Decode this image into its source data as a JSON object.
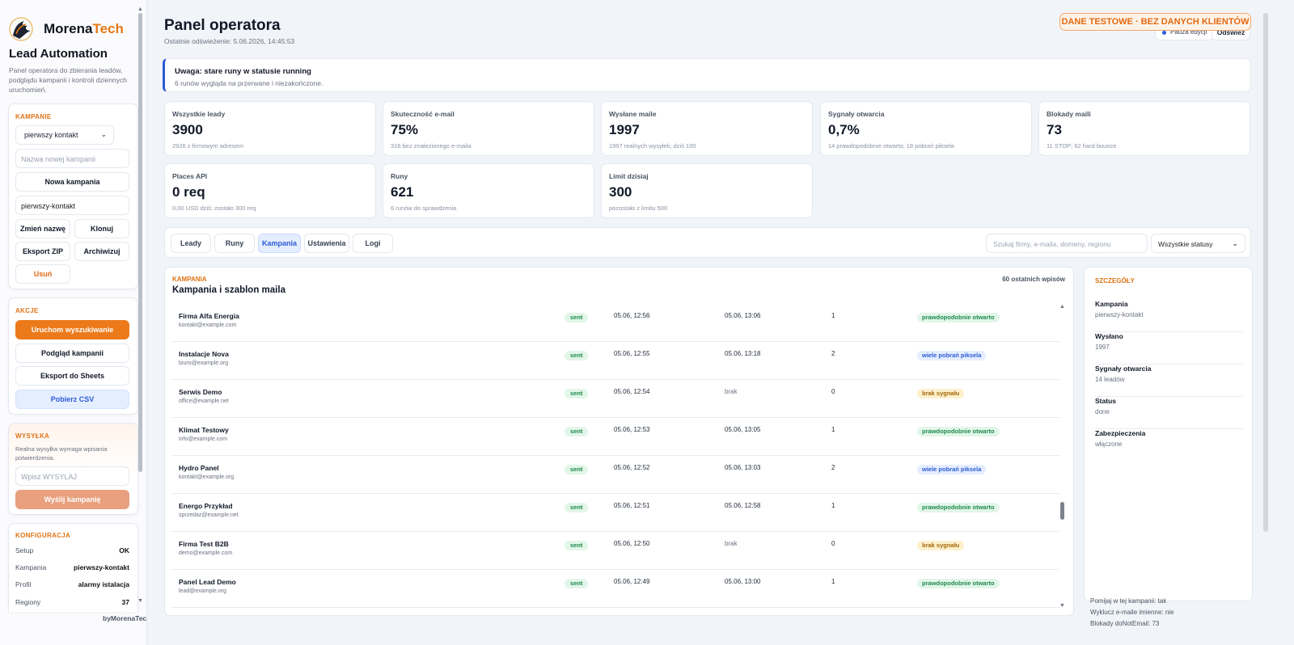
{
  "sidebar": {
    "logo_name": "Morena",
    "logo_accent": "Tech",
    "title": "Lead Automation",
    "description": "Panel operatora do zbierania leadów, podglądu kampanii i kontroli dziennych uruchomień.",
    "campaigns": {
      "heading": "KAMPANIE",
      "select_value": "pierwszy kontakt",
      "new_name_placeholder": "Nazwa nowej kampanii",
      "new_button": "Nowa kampania",
      "slug_value": "pierwszy-kontakt",
      "rename": "Zmień nazwę",
      "clone": "Klonuj",
      "export_zip": "Eksport ZIP",
      "archive": "Archiwizuj",
      "delete": "Usuń"
    },
    "actions": {
      "heading": "AKCJE",
      "run": "Uruchom wyszukiwanie",
      "preview": "Podgląd kampanii",
      "export_sheets": "Eksport do Sheets",
      "download_csv": "Pobierz CSV"
    },
    "sending": {
      "heading": "WYSYŁKA",
      "description": "Realna wysyłka wymaga wpisania potwierdzenia.",
      "confirm_placeholder": "Wpisz WYSYLAJ",
      "send_button": "Wyślij kampanię"
    },
    "config": {
      "heading": "KONFIGURACJA",
      "rows": [
        {
          "k": "Setup",
          "v": "OK"
        },
        {
          "k": "Kampania",
          "v": "pierwszy-kontakt"
        },
        {
          "k": "Profil",
          "v": "alarmy istalacja"
        },
        {
          "k": "Regiony",
          "v": "37"
        }
      ]
    },
    "footer": "byMorenaTech"
  },
  "header": {
    "title": "Panel operatora",
    "subtitle": "Ostatnie odświeżenie: 5.06.2026, 14:45:53",
    "test_badge": "DANE TESTOWE · BEZ DANYCH KLIENTÓW",
    "pause": "Pauza edycji",
    "refresh": "Odśwież"
  },
  "alert": {
    "title": "Uwaga: stare runy w statusie running",
    "text": "6 runów wygląda na przerwane i niezakończone."
  },
  "stats": [
    {
      "label": "Wszystkie leady",
      "value": "3900",
      "sub": "2926 z firmowym adresem"
    },
    {
      "label": "Skuteczność e-mail",
      "value": "75%",
      "sub": "316 bez znalezionego e-maila"
    },
    {
      "label": "Wysłane maile",
      "value": "1997",
      "sub": "1997 realnych wysyłek; dziś 100"
    },
    {
      "label": "Sygnały otwarcia",
      "value": "0,7%",
      "sub": "14 prawdopodobnie otwarto; 18 pobrań piksela"
    },
    {
      "label": "Blokady maili",
      "value": "73",
      "sub": "11 STOP; 62 hard bounce"
    },
    {
      "label": "Places API",
      "value": "0 req",
      "sub": "0,00 USD dziś; zostało 300 req"
    },
    {
      "label": "Runy",
      "value": "621",
      "sub": "6 runów do sprawdzenia"
    },
    {
      "label": "Limit dzisiaj",
      "value": "300",
      "sub": "pozostało z limitu 500"
    }
  ],
  "tabs": [
    {
      "label": "Leady"
    },
    {
      "label": "Runy"
    },
    {
      "label": "Kampania"
    },
    {
      "label": "Ustawienia"
    },
    {
      "label": "Logi"
    }
  ],
  "active_tab": "Kampania",
  "search_placeholder": "Szukaj firmy, e-maila, domeny, regionu",
  "status_filter": "Wszystkie statusy",
  "campaign_panel": {
    "heading": "KAMPANIA",
    "title": "Kampania i szablon maila",
    "count": "60 ostatnich wpisów",
    "rows": [
      {
        "name": "Firma Alfa Energia",
        "email": "kontakt@example.com",
        "status": "sent",
        "sent": "05.06, 12:56",
        "opened": "05.06, 13:06",
        "count": "1",
        "signal": "prawdopodobnie otwarto",
        "signal_color": "green"
      },
      {
        "name": "Instalacje Nova",
        "email": "biuro@example.org",
        "status": "sent",
        "sent": "05.06, 12:55",
        "opened": "05.06, 13:18",
        "count": "2",
        "signal": "wiele pobrań piksela",
        "signal_color": "blue"
      },
      {
        "name": "Serwis Demo",
        "email": "office@example.net",
        "status": "sent",
        "sent": "05.06, 12:54",
        "opened": "brak",
        "count": "0",
        "signal": "brak sygnału",
        "signal_color": "yellow"
      },
      {
        "name": "Klimat Testowy",
        "email": "info@example.com",
        "status": "sent",
        "sent": "05.06, 12:53",
        "opened": "05.06, 13:05",
        "count": "1",
        "signal": "prawdopodobnie otwarto",
        "signal_color": "green"
      },
      {
        "name": "Hydro Panel",
        "email": "kontakt@example.org",
        "status": "sent",
        "sent": "05.06, 12:52",
        "opened": "05.06, 13:03",
        "count": "2",
        "signal": "wiele pobrań piksela",
        "signal_color": "blue"
      },
      {
        "name": "Energo Przykład",
        "email": "sprzedaz@example.net",
        "status": "sent",
        "sent": "05.06, 12:51",
        "opened": "05.06, 12:58",
        "count": "1",
        "signal": "prawdopodobnie otwarto",
        "signal_color": "green"
      },
      {
        "name": "Firma Test B2B",
        "email": "demo@example.com",
        "status": "sent",
        "sent": "05.06, 12:50",
        "opened": "brak",
        "count": "0",
        "signal": "brak sygnału",
        "signal_color": "yellow"
      },
      {
        "name": "Panel Lead Demo",
        "email": "lead@example.org",
        "status": "sent",
        "sent": "05.06, 12:49",
        "opened": "05.06, 13:00",
        "count": "1",
        "signal": "prawdopodobnie otwarto",
        "signal_color": "green"
      }
    ]
  },
  "details": {
    "heading": "SZCZEGÓŁY",
    "items": [
      {
        "k": "Kampania",
        "v": "pierwszy-kontakt"
      },
      {
        "k": "Wysłano",
        "v": "1997"
      },
      {
        "k": "Sygnały otwarcia",
        "v": "14 leadów"
      },
      {
        "k": "Status",
        "v": "done"
      },
      {
        "k": "Zabezpieczenia",
        "v": "włączone"
      }
    ],
    "overflow": [
      "Pomijaj w tej kampanii: tak",
      "Wyklucz e-maile imienne: nie",
      "Blokady doNotEmail: 73"
    ]
  },
  "colors": {
    "accent": "#ec7a1b",
    "primary": "#2c5bd6",
    "success": "#1d8a4a"
  }
}
